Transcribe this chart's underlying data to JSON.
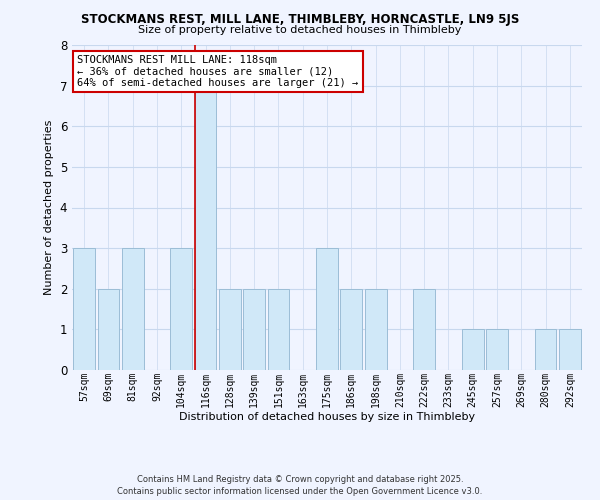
{
  "title": "STOCKMANS REST, MILL LANE, THIMBLEBY, HORNCASTLE, LN9 5JS",
  "subtitle": "Size of property relative to detached houses in Thimbleby",
  "xlabel": "Distribution of detached houses by size in Thimbleby",
  "ylabel": "Number of detached properties",
  "bins": [
    "57sqm",
    "69sqm",
    "81sqm",
    "92sqm",
    "104sqm",
    "116sqm",
    "128sqm",
    "139sqm",
    "151sqm",
    "163sqm",
    "175sqm",
    "186sqm",
    "198sqm",
    "210sqm",
    "222sqm",
    "233sqm",
    "245sqm",
    "257sqm",
    "269sqm",
    "280sqm",
    "292sqm"
  ],
  "counts": [
    3,
    2,
    3,
    0,
    3,
    7,
    2,
    2,
    2,
    0,
    3,
    2,
    2,
    0,
    2,
    0,
    1,
    1,
    0,
    1,
    1
  ],
  "bar_color": "#d0e8f8",
  "bar_edge_color": "#9bbdd6",
  "highlight_index": 5,
  "highlight_color": "#cc0000",
  "ylim": [
    0,
    8
  ],
  "yticks": [
    0,
    1,
    2,
    3,
    4,
    5,
    6,
    7,
    8
  ],
  "annotation_title": "STOCKMANS REST MILL LANE: 118sqm",
  "annotation_line1": "← 36% of detached houses are smaller (12)",
  "annotation_line2": "64% of semi-detached houses are larger (21) →",
  "footer_line1": "Contains HM Land Registry data © Crown copyright and database right 2025.",
  "footer_line2": "Contains public sector information licensed under the Open Government Licence v3.0.",
  "background_color": "#f0f4ff",
  "grid_color": "#c8d8ee"
}
